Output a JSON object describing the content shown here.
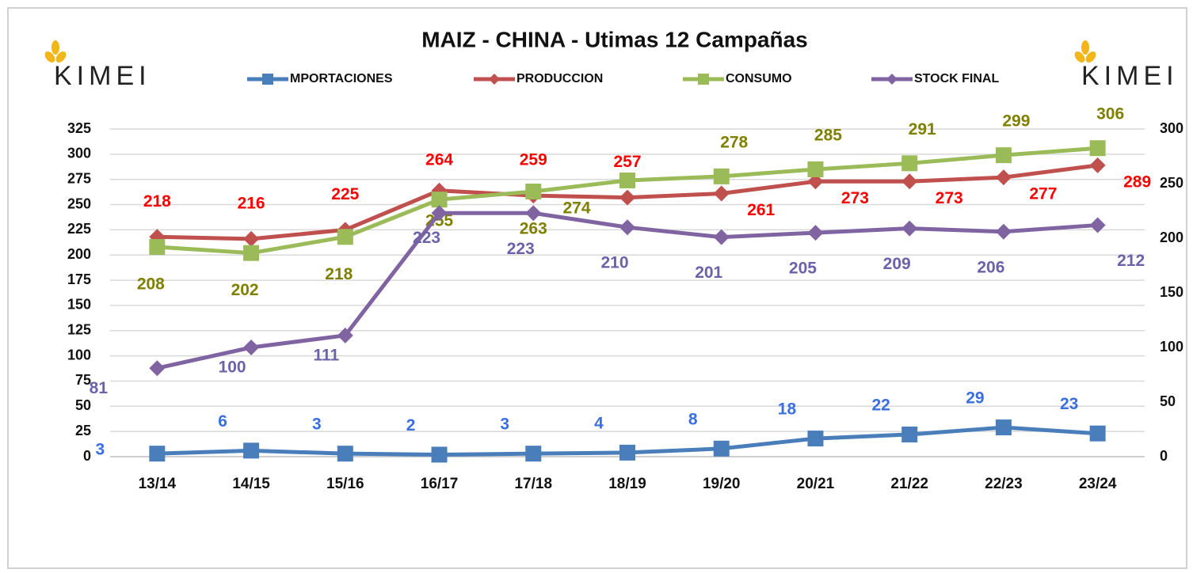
{
  "chart_data": {
    "type": "line",
    "title": "MAIZ - CHINA - Utimas 12 Campañas",
    "logo": "KIMEI",
    "categories": [
      "13/14",
      "14/15",
      "15/16",
      "16/17",
      "17/18",
      "18/19",
      "19/20",
      "20/21",
      "21/22",
      "22/23",
      "23/24"
    ],
    "series": [
      {
        "name": "MPORTACIONES",
        "color": "#4a7ebb",
        "label_color": "#3b6fe0",
        "marker": "square",
        "axis": "y",
        "values": [
          3,
          6,
          3,
          2,
          3,
          4,
          8,
          18,
          22,
          29,
          23
        ]
      },
      {
        "name": "PRODUCCION",
        "color": "#c0504d",
        "label_color": "#ff0000",
        "marker": "diamond",
        "axis": "y",
        "values": [
          218,
          216,
          225,
          264,
          259,
          257,
          261,
          273,
          273,
          277,
          289
        ]
      },
      {
        "name": "CONSUMO",
        "color": "#9bbb59",
        "label_color": "#808000",
        "marker": "square",
        "axis": "y",
        "values": [
          208,
          202,
          218,
          255,
          263,
          274,
          278,
          285,
          291,
          299,
          306
        ]
      },
      {
        "name": "STOCK FINAL",
        "color": "#8064a2",
        "label_color": "#6b62a8",
        "marker": "diamond",
        "axis": "y2",
        "values": [
          81,
          100,
          111,
          223,
          223,
          210,
          201,
          205,
          209,
          206,
          212
        ]
      }
    ],
    "ylim": [
      0,
      325
    ],
    "yticks": [
      0,
      25,
      50,
      75,
      100,
      125,
      150,
      175,
      200,
      225,
      250,
      275,
      300,
      325
    ],
    "y2lim": [
      0,
      300
    ],
    "y2ticks": [
      0,
      50,
      100,
      150,
      200,
      250,
      300
    ],
    "grid": true,
    "legend": "top"
  }
}
